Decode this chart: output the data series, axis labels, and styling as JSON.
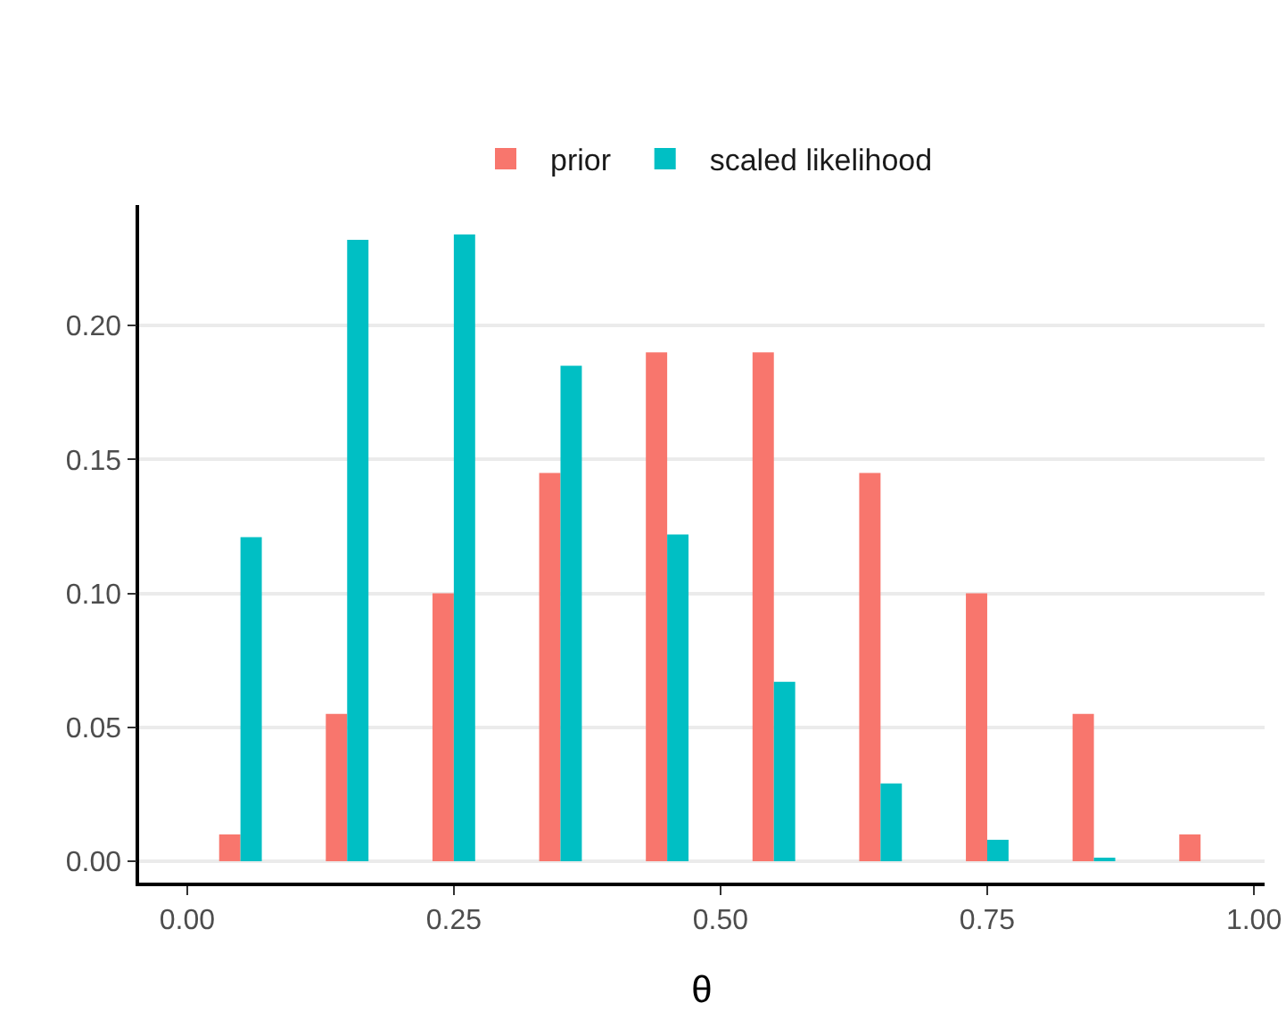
{
  "chart_data": {
    "type": "bar",
    "xlabel": "θ",
    "x": [
      0.05,
      0.15,
      0.25,
      0.35,
      0.45,
      0.55,
      0.65,
      0.75,
      0.85,
      0.95
    ],
    "series": [
      {
        "name": "prior",
        "color": "#f8766d",
        "values": [
          0.01,
          0.055,
          0.1,
          0.145,
          0.19,
          0.19,
          0.145,
          0.1,
          0.055,
          0.01
        ]
      },
      {
        "name": "scaled likelihood",
        "color": "#00bfc4",
        "values": [
          0.121,
          0.232,
          0.234,
          0.185,
          0.122,
          0.067,
          0.029,
          0.008,
          0.001,
          0
        ]
      }
    ],
    "xlim": [
      -0.045,
      1.01
    ],
    "xticks": [
      {
        "value": 0,
        "label": "0.00"
      },
      {
        "value": 0.25,
        "label": "0.25"
      },
      {
        "value": 0.5,
        "label": "0.50"
      },
      {
        "value": 0.75,
        "label": "0.75"
      },
      {
        "value": 1,
        "label": "1.00"
      }
    ],
    "ylim": [
      -0.008,
      0.245
    ],
    "yticks": [
      {
        "value": 0,
        "label": "0.00"
      },
      {
        "value": 0.05,
        "label": "0.05"
      },
      {
        "value": 0.1,
        "label": "0.10"
      },
      {
        "value": 0.15,
        "label": "0.15"
      },
      {
        "value": 0.2,
        "label": "0.20"
      }
    ],
    "grid": "y",
    "legend": "top"
  }
}
